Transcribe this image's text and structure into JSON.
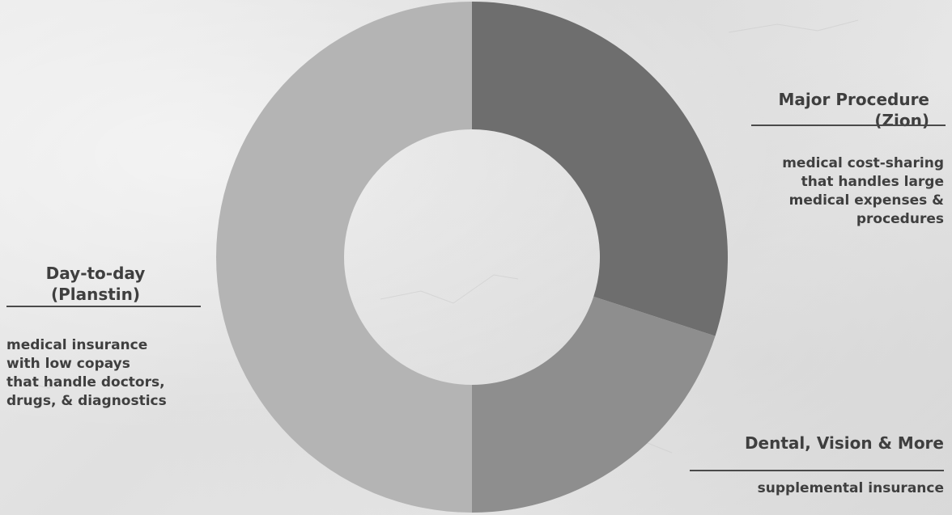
{
  "chart_data": {
    "type": "pie",
    "title": "",
    "slices": [
      {
        "label": "Major Procedure (Zion)",
        "value": 30,
        "color": "#6e6e6e"
      },
      {
        "label": "Dental, Vision & More",
        "value": 20,
        "color": "#8e8e8e"
      },
      {
        "label": "Day-to-day (Planstin)",
        "value": 50,
        "color": "#b4b4b4"
      }
    ],
    "donut": true
  },
  "labels": {
    "major": {
      "title_line1": "Major Procedure",
      "title_line2": "(Zion)",
      "desc_lines": [
        "medical cost-sharing",
        "that handles large",
        "medical expenses &",
        "procedures"
      ]
    },
    "dental": {
      "title": "Dental, Vision & More",
      "desc": "supplemental insurance"
    },
    "daytoday": {
      "title_line1": "Day-to-day",
      "title_line2": "(Planstin)",
      "desc_lines": [
        "medical insurance",
        "with low copays",
        "that handle doctors,",
        "drugs, & diagnostics"
      ]
    }
  }
}
